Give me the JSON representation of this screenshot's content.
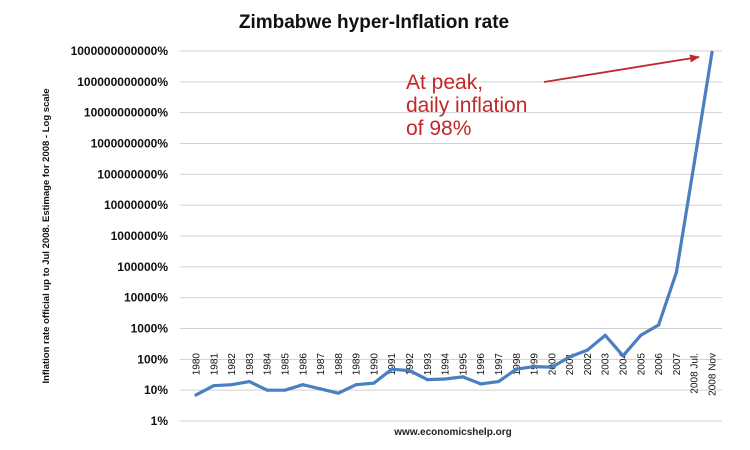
{
  "chart_data": {
    "type": "line",
    "title": "Zimbabwe hyper-Inflation rate",
    "ylabel": "Inflation rate official up to Jul 2008. Estimage for 2008 - Log scale",
    "xlabel": "",
    "y_scale": "log",
    "ylim": [
      1,
      1000000000000
    ],
    "y_ticks": [
      1,
      10,
      100,
      1000,
      10000,
      100000,
      1000000,
      10000000,
      100000000,
      1000000000,
      10000000000,
      100000000000,
      1000000000000
    ],
    "y_tick_labels": [
      "1%",
      "10%",
      "100%",
      "1000%",
      "10000%",
      "100000%",
      "1000000%",
      "10000000%",
      "100000000%",
      "1000000000%",
      "10000000000%",
      "100000000000%",
      "1000000000000%"
    ],
    "categories": [
      "1980",
      "1981",
      "1982",
      "1983",
      "1984",
      "1985",
      "1986",
      "1987",
      "1988",
      "1989",
      "1990",
      "1991",
      "1992",
      "1993",
      "1994",
      "1995",
      "1996",
      "1997",
      "1998",
      "1999",
      "2000",
      "2001",
      "2002",
      "2003",
      "2004",
      "2005",
      "2006",
      "2007",
      "2008 Jul.",
      "2008 Nov"
    ],
    "series": [
      {
        "values": [
          7,
          14,
          15,
          19,
          10,
          10,
          15,
          11,
          8,
          15,
          17,
          48,
          43,
          22,
          23,
          27,
          16,
          19,
          48,
          58,
          56,
          120,
          200,
          600,
          130,
          600,
          1300,
          66000,
          230000000,
          900000000000
        ],
        "color": "#4a7fc0"
      }
    ],
    "annotation": {
      "lines": [
        "At peak,",
        "daily inflation",
        "of 98%"
      ],
      "color": "#c0282b"
    },
    "source": "www.economicshelp.org",
    "grid": "horizontal",
    "legend": "none"
  }
}
